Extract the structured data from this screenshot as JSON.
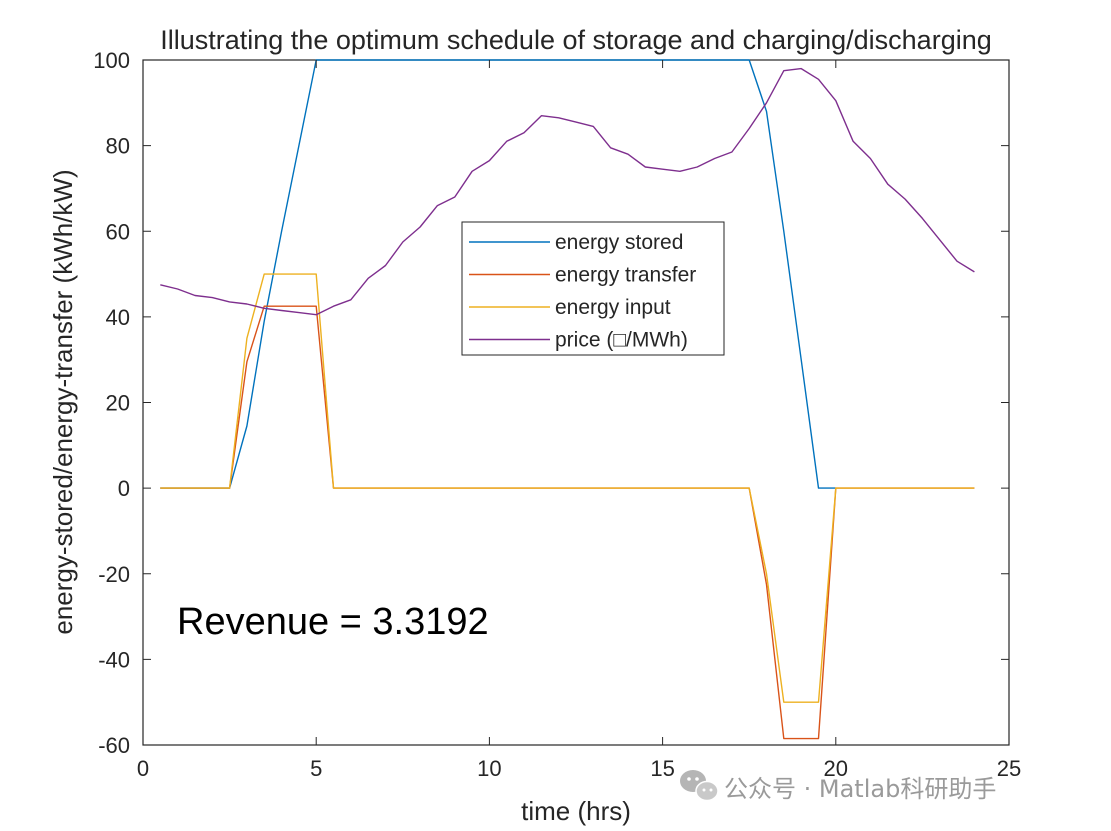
{
  "chart_data": {
    "type": "line",
    "title": "Illustrating the optimum schedule of storage and charging/discharging",
    "xlabel": "time (hrs)",
    "ylabel": "energy-stored/energy-transfer (kWh/kW)",
    "xlim": [
      0,
      25
    ],
    "ylim": [
      -60,
      100
    ],
    "xticks": [
      0,
      5,
      10,
      15,
      20,
      25
    ],
    "xtick_labels": [
      "0",
      "5",
      "10",
      "15",
      "20",
      "25"
    ],
    "yticks": [
      -60,
      -40,
      -20,
      0,
      20,
      40,
      60,
      80,
      100
    ],
    "ytick_labels": [
      "-60",
      "-40",
      "-20",
      "0",
      "20",
      "40",
      "60",
      "80",
      "100"
    ],
    "grid": false,
    "legend_position": "upper-center",
    "series": [
      {
        "name": "energy stored",
        "color": "#0072BD",
        "x": [
          0.5,
          2.5,
          3.0,
          3.5,
          4.0,
          4.5,
          5.0,
          17.5,
          18.0,
          18.5,
          19.0,
          19.5,
          20.0
        ],
        "y": [
          0,
          0,
          14.5,
          39,
          60,
          80,
          100,
          100,
          88,
          60,
          30,
          0,
          0
        ]
      },
      {
        "name": "energy transfer",
        "color": "#D95319",
        "x": [
          0.5,
          2.5,
          3.0,
          3.5,
          5.0,
          5.5,
          17.5,
          18.0,
          18.5,
          19.5,
          20.0,
          24.0
        ],
        "y": [
          0,
          0,
          29.5,
          42.5,
          42.5,
          0,
          0,
          -22.5,
          -58.5,
          -58.5,
          0,
          0
        ]
      },
      {
        "name": "energy input",
        "color": "#EDB120",
        "x": [
          0.5,
          2.5,
          3.0,
          3.5,
          5.0,
          5.5,
          17.5,
          18.0,
          18.5,
          19.5,
          20.0,
          24.0
        ],
        "y": [
          0,
          0,
          35,
          50,
          50,
          0,
          0,
          -20,
          -50,
          -50,
          0,
          0
        ]
      },
      {
        "name": "price (□/MWh)",
        "color": "#7E2F8E",
        "x": [
          0.5,
          1.0,
          1.5,
          2.0,
          2.5,
          3.0,
          3.5,
          4.0,
          4.5,
          5.0,
          5.5,
          6.0,
          6.5,
          7.0,
          7.5,
          8.0,
          8.5,
          9.0,
          9.5,
          10.0,
          10.5,
          11.0,
          11.5,
          12.0,
          12.5,
          13.0,
          13.5,
          14.0,
          14.5,
          15.0,
          15.5,
          16.0,
          16.5,
          17.0,
          17.5,
          18.0,
          18.5,
          19.0,
          19.5,
          20.0,
          20.5,
          21.0,
          21.5,
          22.0,
          22.5,
          23.0,
          23.5,
          24.0
        ],
        "y": [
          47.5,
          46.5,
          45,
          44.5,
          43.5,
          43,
          42,
          41.5,
          41,
          40.5,
          42.5,
          44,
          49,
          52,
          57.5,
          61,
          66,
          68,
          74,
          76.5,
          81,
          83,
          87,
          86.5,
          85.5,
          84.5,
          79.5,
          78,
          75,
          74.5,
          74,
          75,
          77,
          78.5,
          84,
          90,
          97.5,
          98,
          95.5,
          90.5,
          81,
          77,
          71,
          67.5,
          63,
          58,
          53,
          50.5
        ]
      }
    ],
    "annotations": [
      {
        "text": "Revenue = 3.3192",
        "x": 1,
        "y": -30
      }
    ]
  },
  "watermark": {
    "icon": "wechat-icon",
    "text": "公众号 · Matlab科研助手"
  }
}
